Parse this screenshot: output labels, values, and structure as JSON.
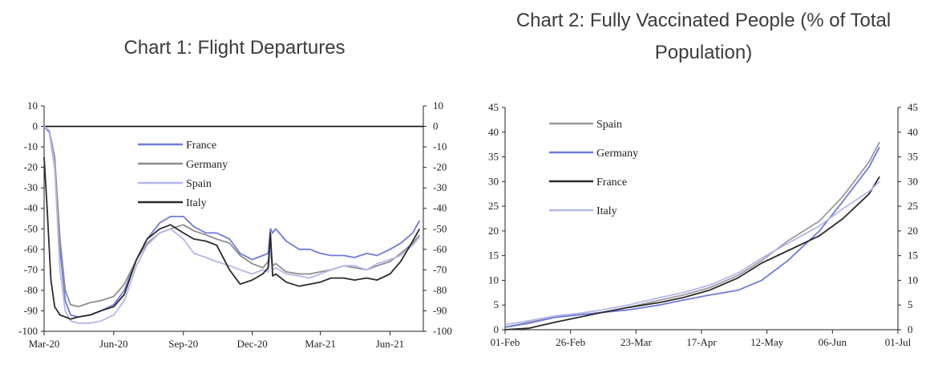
{
  "charts": [
    {
      "chart_data": {
        "type": "line",
        "title": "Chart 1: Flight Departures",
        "xlabel": "",
        "ylabel": "",
        "x_ticks": [
          "Mar-20",
          "Jun-20",
          "Sep-20",
          "Dec-20",
          "Mar-21",
          "Jun-21"
        ],
        "x_range": [
          "2020-03-01",
          "2021-07-15"
        ],
        "ylim": [
          -100,
          10
        ],
        "y_ticks": [
          10,
          0,
          -10,
          -20,
          -30,
          -40,
          -50,
          -60,
          -70,
          -80,
          -90,
          -100
        ],
        "y_axis_right": true,
        "zero_line": true,
        "grid": false,
        "legend_position": "top-center",
        "series": [
          {
            "name": "France",
            "color": "#6f7bd9",
            "x": [
              "2020-03-01",
              "2020-03-08",
              "2020-03-15",
              "2020-03-22",
              "2020-03-29",
              "2020-04-05",
              "2020-04-15",
              "2020-05-01",
              "2020-05-15",
              "2020-06-01",
              "2020-06-15",
              "2020-07-01",
              "2020-07-15",
              "2020-08-01",
              "2020-08-15",
              "2020-09-01",
              "2020-09-15",
              "2020-10-01",
              "2020-10-15",
              "2020-11-01",
              "2020-11-15",
              "2020-12-01",
              "2020-12-15",
              "2020-12-22",
              "2020-12-25",
              "2020-12-28",
              "2021-01-01",
              "2021-01-15",
              "2021-02-01",
              "2021-02-15",
              "2021-03-01",
              "2021-03-15",
              "2021-04-01",
              "2021-04-15",
              "2021-05-01",
              "2021-05-15",
              "2021-06-01",
              "2021-06-15",
              "2021-07-01",
              "2021-07-10"
            ],
            "y": [
              0,
              -3,
              -20,
              -60,
              -85,
              -92,
              -93,
              -92,
              -90,
              -87,
              -80,
              -65,
              -55,
              -47,
              -44,
              -44,
              -49,
              -52,
              -52,
              -55,
              -62,
              -65,
              -63,
              -62,
              -50,
              -52,
              -50,
              -56,
              -60,
              -60,
              -62,
              -63,
              -63,
              -64,
              -62,
              -63,
              -60,
              -57,
              -52,
              -46
            ]
          },
          {
            "name": "Germany",
            "color": "#8e8e8e",
            "x": [
              "2020-03-01",
              "2020-03-08",
              "2020-03-15",
              "2020-03-22",
              "2020-03-29",
              "2020-04-05",
              "2020-04-15",
              "2020-05-01",
              "2020-05-15",
              "2020-06-01",
              "2020-06-15",
              "2020-07-01",
              "2020-07-15",
              "2020-08-01",
              "2020-08-15",
              "2020-09-01",
              "2020-09-15",
              "2020-10-01",
              "2020-10-15",
              "2020-11-01",
              "2020-11-15",
              "2020-12-01",
              "2020-12-15",
              "2020-12-22",
              "2020-12-25",
              "2020-12-28",
              "2021-01-01",
              "2021-01-15",
              "2021-02-01",
              "2021-02-15",
              "2021-03-01",
              "2021-03-15",
              "2021-04-01",
              "2021-04-15",
              "2021-05-01",
              "2021-05-15",
              "2021-06-01",
              "2021-06-15",
              "2021-07-01",
              "2021-07-10"
            ],
            "y": [
              0,
              -2,
              -15,
              -55,
              -80,
              -87,
              -88,
              -86,
              -85,
              -83,
              -77,
              -65,
              -57,
              -52,
              -50,
              -48,
              -51,
              -53,
              -55,
              -57,
              -63,
              -67,
              -69,
              -66,
              -58,
              -68,
              -67,
              -71,
              -72,
              -72,
              -71,
              -70,
              -68,
              -69,
              -70,
              -68,
              -66,
              -62,
              -57,
              -53
            ]
          },
          {
            "name": "Spain",
            "color": "#b5b7ec",
            "x": [
              "2020-03-01",
              "2020-03-08",
              "2020-03-15",
              "2020-03-22",
              "2020-03-29",
              "2020-04-05",
              "2020-04-15",
              "2020-05-01",
              "2020-05-15",
              "2020-06-01",
              "2020-06-15",
              "2020-07-01",
              "2020-07-15",
              "2020-08-01",
              "2020-08-15",
              "2020-09-01",
              "2020-09-15",
              "2020-10-01",
              "2020-10-15",
              "2020-11-01",
              "2020-11-15",
              "2020-12-01",
              "2020-12-15",
              "2020-12-22",
              "2020-12-25",
              "2020-12-28",
              "2021-01-01",
              "2021-01-15",
              "2021-02-01",
              "2021-02-15",
              "2021-03-01",
              "2021-03-15",
              "2021-04-01",
              "2021-04-15",
              "2021-05-01",
              "2021-05-15",
              "2021-06-01",
              "2021-06-15",
              "2021-07-01",
              "2021-07-10"
            ],
            "y": [
              0,
              -2,
              -20,
              -70,
              -90,
              -95,
              -96,
              -96,
              -95,
              -92,
              -85,
              -68,
              -58,
              -52,
              -50,
              -55,
              -62,
              -64,
              -66,
              -68,
              -70,
              -72,
              -70,
              -71,
              -60,
              -70,
              -69,
              -72,
              -73,
              -74,
              -72,
              -70,
              -68,
              -68,
              -70,
              -67,
              -65,
              -63,
              -58,
              -54
            ]
          },
          {
            "name": "Italy",
            "color": "#2b2b2b",
            "x": [
              "2020-03-01",
              "2020-03-05",
              "2020-03-10",
              "2020-03-15",
              "2020-03-22",
              "2020-03-29",
              "2020-04-05",
              "2020-04-15",
              "2020-05-01",
              "2020-05-15",
              "2020-06-01",
              "2020-06-15",
              "2020-07-01",
              "2020-07-15",
              "2020-08-01",
              "2020-08-15",
              "2020-09-01",
              "2020-09-15",
              "2020-10-01",
              "2020-10-15",
              "2020-11-01",
              "2020-11-15",
              "2020-12-01",
              "2020-12-15",
              "2020-12-22",
              "2020-12-25",
              "2020-12-28",
              "2021-01-01",
              "2021-01-15",
              "2021-02-01",
              "2021-02-15",
              "2021-03-01",
              "2021-03-15",
              "2021-04-01",
              "2021-04-15",
              "2021-05-01",
              "2021-05-15",
              "2021-06-01",
              "2021-06-15",
              "2021-07-01",
              "2021-07-10"
            ],
            "y": [
              -15,
              -40,
              -75,
              -88,
              -92,
              -93,
              -94,
              -93,
              -92,
              -90,
              -88,
              -82,
              -65,
              -55,
              -50,
              -48,
              -52,
              -55,
              -56,
              -58,
              -70,
              -77,
              -75,
              -72,
              -69,
              -52,
              -73,
              -72,
              -76,
              -78,
              -77,
              -76,
              -74,
              -74,
              -75,
              -74,
              -75,
              -72,
              -66,
              -56,
              -50
            ]
          }
        ]
      }
    },
    {
      "chart_data": {
        "type": "line",
        "title": "Chart 2: Fully Vaccinated People (% of Total Population)",
        "xlabel": "",
        "ylabel": "",
        "x_ticks": [
          "01-Feb",
          "26-Feb",
          "23-Mar",
          "17-Apr",
          "12-May",
          "06-Jun",
          "01-Jul"
        ],
        "x_range": [
          "2021-02-01",
          "2021-07-01"
        ],
        "ylim": [
          0,
          45
        ],
        "y_ticks": [
          45,
          40,
          35,
          30,
          25,
          20,
          15,
          10,
          5,
          0
        ],
        "y_axis_right": true,
        "grid": false,
        "legend_position": "top-left",
        "series": [
          {
            "name": "Spain",
            "color": "#9a9a9a",
            "x": [
              "2021-02-01",
              "2021-02-10",
              "2021-02-20",
              "2021-03-01",
              "2021-03-10",
              "2021-03-20",
              "2021-04-01",
              "2021-04-10",
              "2021-04-20",
              "2021-05-01",
              "2021-05-10",
              "2021-05-20",
              "2021-06-01",
              "2021-06-10",
              "2021-06-20",
              "2021-06-24"
            ],
            "y": [
              0.5,
              1.5,
              2.5,
              3,
              3.5,
              4.5,
              6,
              7,
              8.5,
              11,
              14,
              18,
              22,
              27,
              34,
              38
            ]
          },
          {
            "name": "Germany",
            "color": "#6f7bd9",
            "x": [
              "2021-02-01",
              "2021-02-10",
              "2021-02-20",
              "2021-03-01",
              "2021-03-10",
              "2021-03-20",
              "2021-04-01",
              "2021-04-10",
              "2021-04-20",
              "2021-05-01",
              "2021-05-10",
              "2021-05-20",
              "2021-06-01",
              "2021-06-10",
              "2021-06-20",
              "2021-06-24"
            ],
            "y": [
              0.5,
              1.3,
              2.5,
              3,
              3.5,
              4,
              5,
              6,
              7,
              8,
              10,
              14,
              20,
              26,
              33,
              37
            ]
          },
          {
            "name": "France",
            "color": "#2b2b2b",
            "x": [
              "2021-02-01",
              "2021-02-10",
              "2021-02-20",
              "2021-03-01",
              "2021-03-10",
              "2021-03-20",
              "2021-04-01",
              "2021-04-10",
              "2021-04-20",
              "2021-05-01",
              "2021-05-10",
              "2021-05-20",
              "2021-06-01",
              "2021-06-10",
              "2021-06-20",
              "2021-06-24"
            ],
            "y": [
              0,
              0.3,
              1.5,
              2.5,
              3.5,
              4.5,
              5.5,
              6.5,
              8,
              10.5,
              13.5,
              16,
              19,
              22.5,
              27.5,
              31
            ]
          },
          {
            "name": "Italy",
            "color": "#b5b7ec",
            "x": [
              "2021-02-01",
              "2021-02-10",
              "2021-02-20",
              "2021-03-01",
              "2021-03-10",
              "2021-03-20",
              "2021-04-01",
              "2021-04-10",
              "2021-04-20",
              "2021-05-01",
              "2021-05-10",
              "2021-05-20",
              "2021-06-01",
              "2021-06-10",
              "2021-06-20",
              "2021-06-24"
            ],
            "y": [
              1,
              1.8,
              2.8,
              3.3,
              4,
              5,
              6.5,
              7.5,
              9,
              11.5,
              14.5,
              17.5,
              21,
              24.5,
              28,
              30
            ]
          }
        ]
      }
    }
  ]
}
